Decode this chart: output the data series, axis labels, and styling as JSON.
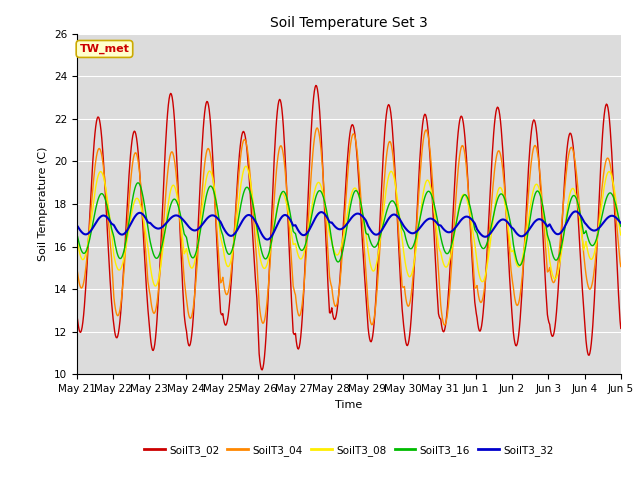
{
  "title": "Soil Temperature Set 3",
  "xlabel": "Time",
  "ylabel": "Soil Temperature (C)",
  "ylim": [
    10,
    26
  ],
  "bg_color": "#dcdcdc",
  "annotation_text": "TW_met",
  "annotation_color": "#cc0000",
  "annotation_bg": "#ffffcc",
  "annotation_border": "#ccaa00",
  "series_colors": {
    "SoilT3_02": "#cc0000",
    "SoilT3_04": "#ff8800",
    "SoilT3_08": "#ffee00",
    "SoilT3_16": "#00bb00",
    "SoilT3_32": "#0000cc"
  },
  "xtick_labels": [
    "May 21",
    "May 22",
    "May 23",
    "May 24",
    "May 25",
    "May 26",
    "May 27",
    "May 28",
    "May 29",
    "May 30",
    "May 31",
    "Jun 1",
    "Jun 2",
    "Jun 3",
    "Jun 4",
    "Jun 5"
  ],
  "n_days": 15,
  "ppd": 48
}
